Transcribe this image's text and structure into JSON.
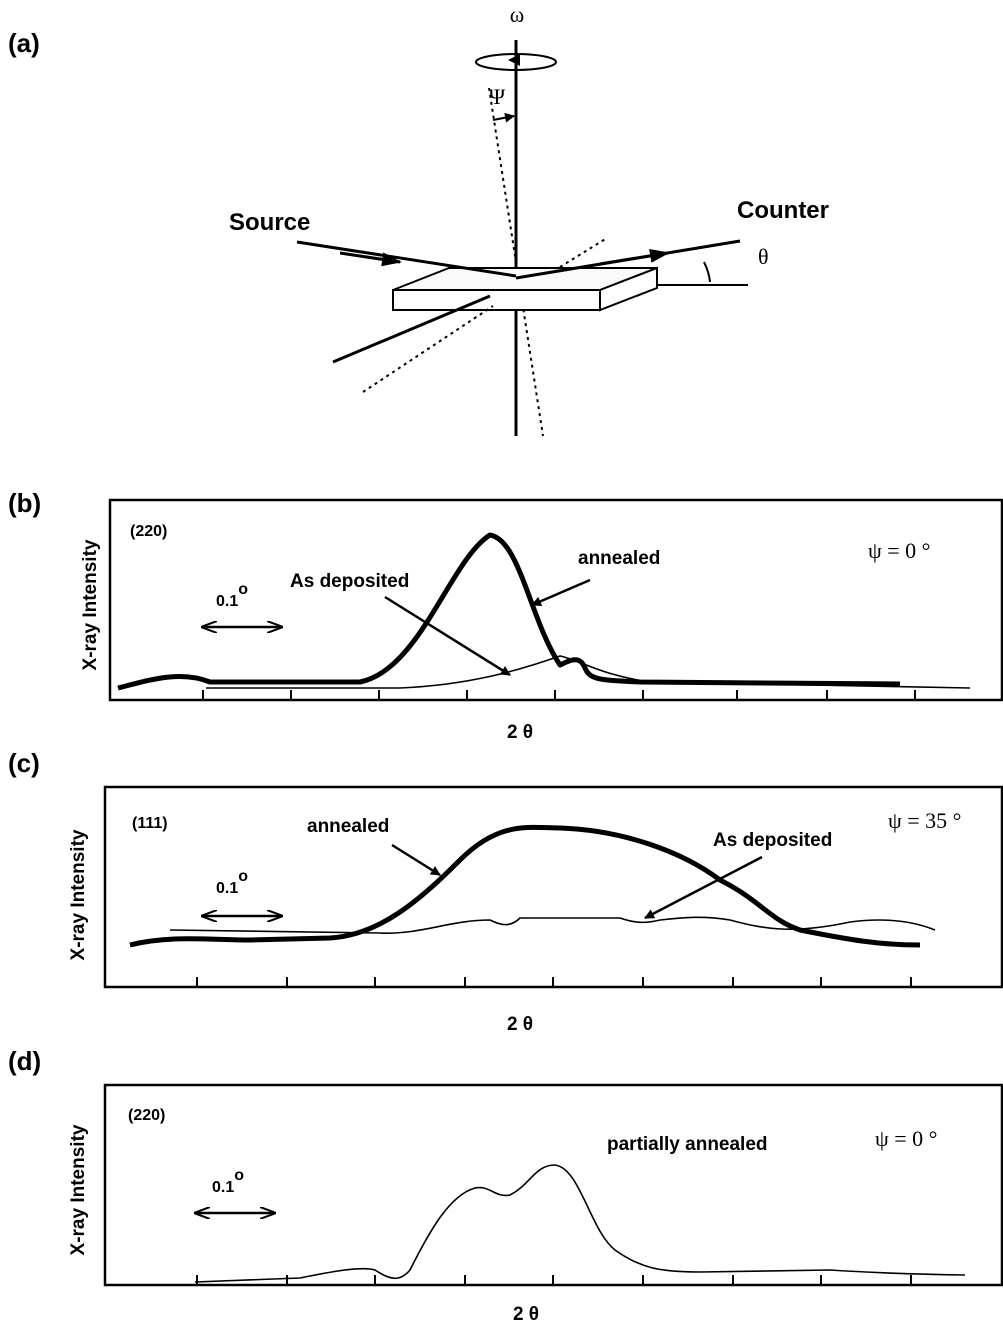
{
  "panel_a": {
    "label": "(a)",
    "omega": "ω",
    "psi": "Ψ",
    "source": "Source",
    "counter": "Counter",
    "theta": "θ"
  },
  "panels": [
    {
      "label": "(b)",
      "y_axis": "X-ray  Intensity",
      "x_axis": "2  θ",
      "plane": "(220)",
      "psi": "ψ = 0 °",
      "scale": "0.1",
      "degree": "o",
      "annotations": [
        "As deposited",
        "annealed"
      ]
    },
    {
      "label": "(c)",
      "y_axis": "X-ray  Intensity",
      "x_axis": "2  θ",
      "plane": "(111)",
      "psi": "ψ = 35 °",
      "scale": "0.1",
      "degree": "o",
      "annotations": [
        "annealed",
        "As deposited"
      ]
    },
    {
      "label": "(d)",
      "y_axis": "X-ray  Intensity",
      "x_axis": "2  θ",
      "plane": "(220)",
      "psi": "ψ = 0 °",
      "scale": "0.1",
      "degree": "o",
      "annotations": [
        "partially annealed"
      ]
    }
  ]
}
